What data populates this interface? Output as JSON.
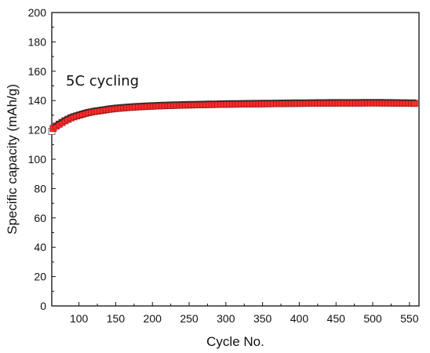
{
  "chart_data": {
    "type": "scatter",
    "title": "",
    "xlabel": "Cycle No.",
    "ylabel": "Specific capacity (mAh/g)",
    "annotation": "5C cycling",
    "xlim": [
      63,
      563
    ],
    "ylim": [
      0,
      200
    ],
    "xticks": [
      100,
      150,
      200,
      250,
      300,
      350,
      400,
      450,
      500,
      550
    ],
    "yticks": [
      0,
      20,
      40,
      60,
      80,
      100,
      120,
      140,
      160,
      180,
      200
    ],
    "grid": false,
    "legend": "none",
    "series": [
      {
        "marker": "square",
        "color": "#ff2a2a",
        "edge_color": "#a01818",
        "first_point": {
          "x": 63,
          "y": 119
        },
        "x": [
          65,
          70,
          80,
          90,
          100,
          110,
          120,
          130,
          140,
          150,
          160,
          170,
          180,
          200,
          220,
          250,
          280,
          300,
          330,
          350,
          380,
          400,
          420,
          450,
          480,
          500,
          520,
          540,
          560
        ],
        "y": [
          121,
          123,
          126,
          128.5,
          130,
          131.5,
          132.5,
          133.2,
          134,
          134.6,
          135,
          135.4,
          135.7,
          136.2,
          136.6,
          137,
          137.3,
          137.5,
          137.7,
          137.8,
          138,
          138.1,
          138.2,
          138.3,
          138.3,
          138.4,
          138.3,
          138.2,
          138.1
        ]
      }
    ]
  }
}
